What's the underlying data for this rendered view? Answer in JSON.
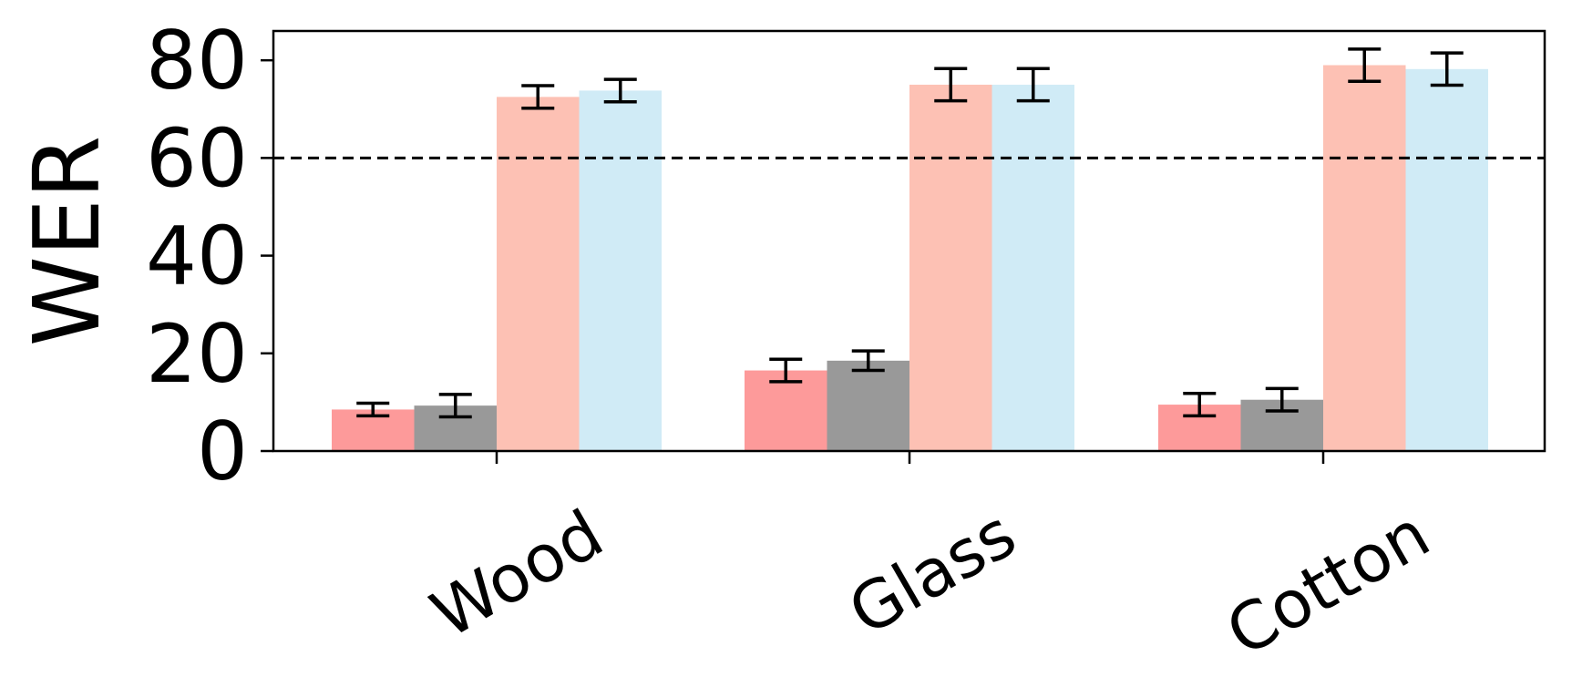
{
  "chart_data": {
    "type": "bar",
    "title": "",
    "xlabel": "",
    "ylabel": "WER",
    "ylim": [
      0,
      86
    ],
    "yticks": [
      "0",
      "20",
      "40",
      "60",
      "80"
    ],
    "categories": [
      "Wood",
      "Glass",
      "Cotton"
    ],
    "reference_line": {
      "y": 60,
      "style": "dashed"
    },
    "grid": false,
    "legend": "none",
    "series": [
      {
        "values": [
          8.5,
          16.5,
          9.5
        ],
        "errors": [
          1.3,
          2.3,
          2.3
        ],
        "color": "#fd9a9a"
      },
      {
        "values": [
          9.3,
          18.5,
          10.5
        ],
        "errors": [
          2.3,
          2.0,
          2.3
        ],
        "color": "#999999"
      },
      {
        "values": [
          72.5,
          75.0,
          79.0
        ],
        "errors": [
          2.3,
          3.3,
          3.3
        ],
        "color": "#fdc1b4"
      },
      {
        "values": [
          73.8,
          75.0,
          78.2
        ],
        "errors": [
          2.3,
          3.3,
          3.3
        ],
        "color": "#d0ebf6"
      }
    ]
  }
}
